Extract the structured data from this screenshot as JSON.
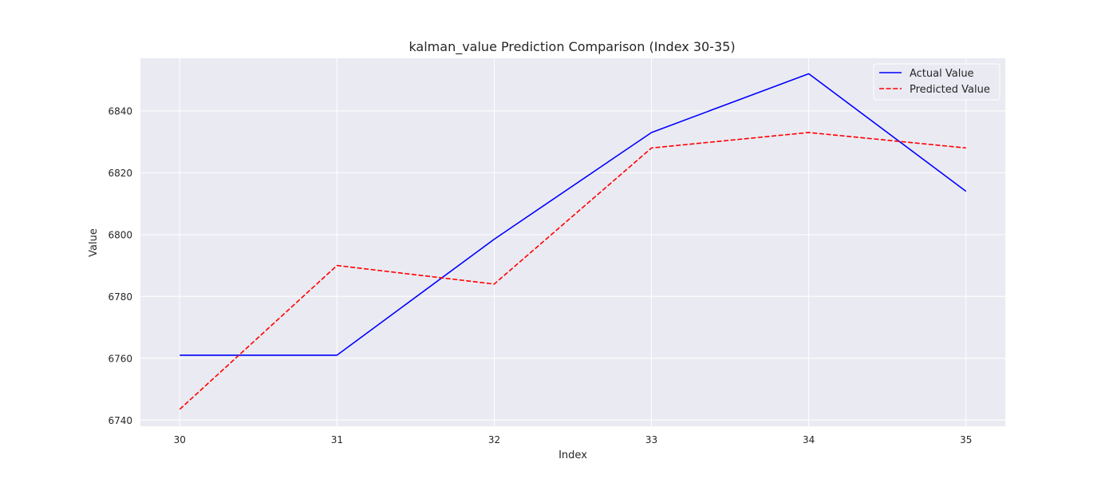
{
  "chart_data": {
    "type": "line",
    "title": "kalman_value Prediction Comparison (Index 30-35)",
    "xlabel": "Index",
    "ylabel": "Value",
    "x": [
      30,
      31,
      32,
      33,
      34,
      35
    ],
    "xlim": [
      29.75,
      35.25
    ],
    "ylim": [
      6738,
      6857
    ],
    "yticks": [
      6740,
      6760,
      6780,
      6800,
      6820,
      6840
    ],
    "grid": true,
    "legend_position": "top-right",
    "series": [
      {
        "name": "Actual Value",
        "values": [
          6761,
          6761,
          6798.5,
          6833,
          6852,
          6814
        ],
        "color": "#0000ff",
        "style": "solid"
      },
      {
        "name": "Predicted Value",
        "values": [
          6743.5,
          6790,
          6784,
          6828,
          6833,
          6828
        ],
        "color": "#ff0000",
        "style": "dashed"
      }
    ]
  }
}
